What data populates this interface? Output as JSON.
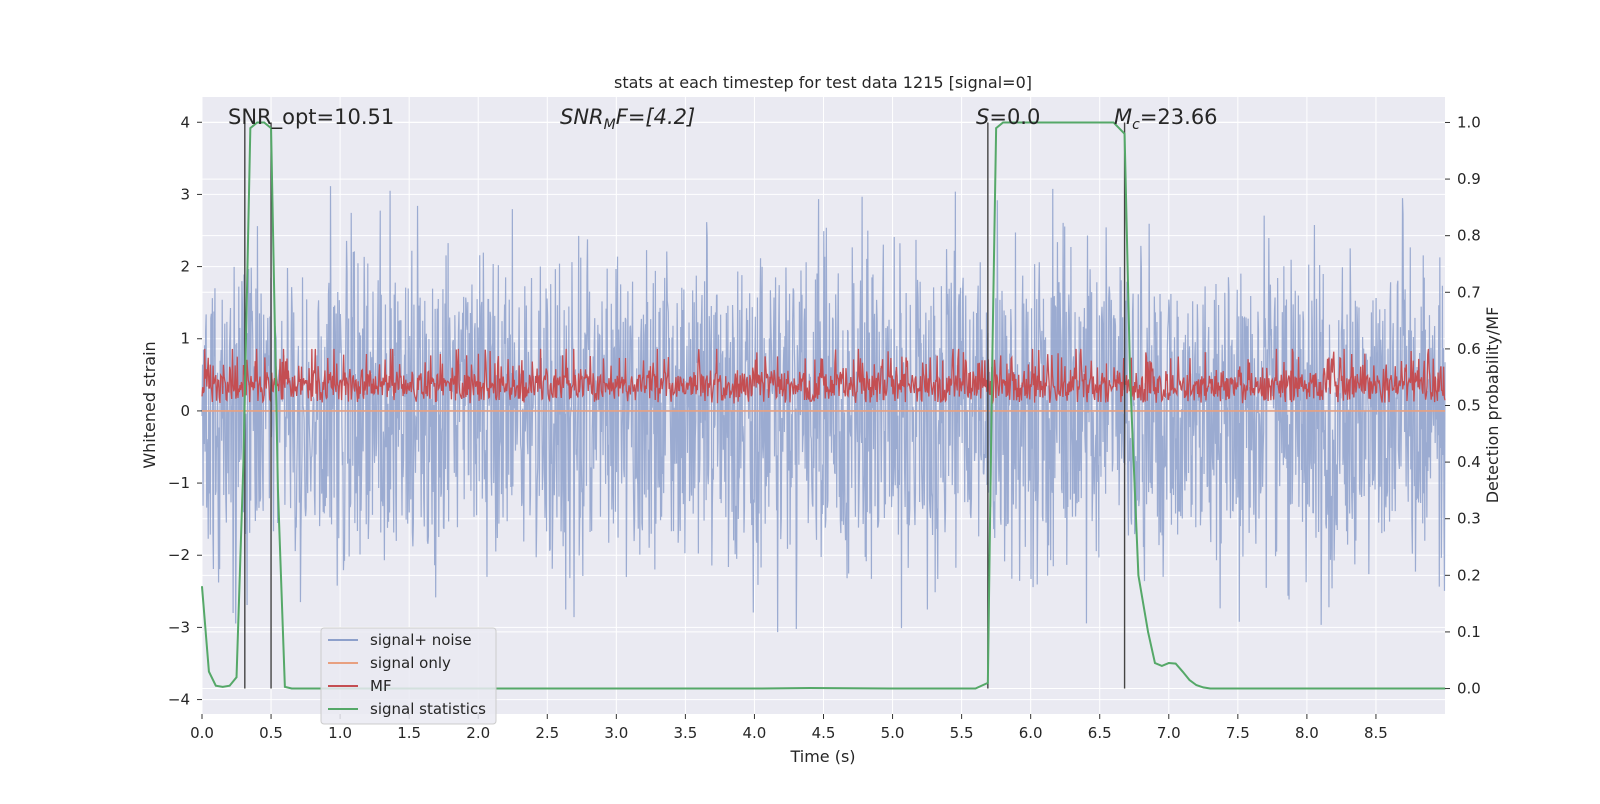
{
  "chart_data": {
    "type": "line",
    "title": "stats at each timestep for test data 1215 [signal=0]",
    "xlabel": "Time (s)",
    "ylabel_left": "Whitened strain",
    "ylabel_right": "Detection probability/MF",
    "xlim": [
      0.0,
      9.0
    ],
    "ylim_left": [
      -4.2,
      4.35
    ],
    "ylim_right": [
      -0.045,
      1.045
    ],
    "x_ticks": [
      "0.0",
      "0.5",
      "1.0",
      "1.5",
      "2.0",
      "2.5",
      "3.0",
      "3.5",
      "4.0",
      "4.5",
      "5.0",
      "5.5",
      "6.0",
      "6.5",
      "7.0",
      "7.5",
      "8.0",
      "8.5"
    ],
    "y_ticks_left": [
      "4",
      "3",
      "2",
      "1",
      "0",
      "−1",
      "−2",
      "−3",
      "−4"
    ],
    "y_ticks_right": [
      "1.0",
      "0.9",
      "0.8",
      "0.7",
      "0.6",
      "0.5",
      "0.4",
      "0.3",
      "0.2",
      "0.1",
      "0.0"
    ],
    "grid": true,
    "legend_position": "lower-left",
    "colors": {
      "background": "#eaeaf2",
      "grid": "#ffffff",
      "noise": "#8da0cb",
      "signal_only": "#e8a080",
      "mf": "#c44e52",
      "stat": "#55a868",
      "vline": "#444444"
    },
    "annotations": {
      "snr_opt": "SNR_opt=10.51",
      "snr_mf_main": "SNR",
      "snr_mf_sub": "M",
      "snr_mf_rest": "F=[4.2]",
      "s_main": "S",
      "s_rest": "=0.0",
      "mc_main": "M",
      "mc_sub": "c",
      "mc_rest": "=23.66"
    },
    "vertical_lines_x": [
      0.31,
      0.5,
      5.69,
      6.68
    ],
    "series": [
      {
        "name": "signal+ noise",
        "axis": "left",
        "envelope_amplitude": [
          1.6,
          3.2
        ]
      },
      {
        "name": "signal only",
        "axis": "left",
        "value": 0.0
      },
      {
        "name": "MF",
        "axis": "right",
        "range": [
          0.49,
          0.6
        ]
      },
      {
        "name": "signal statistics",
        "axis": "right",
        "x": [
          0.0,
          0.05,
          0.1,
          0.15,
          0.2,
          0.25,
          0.3,
          0.35,
          0.4,
          0.45,
          0.5,
          0.55,
          0.6,
          0.65,
          1.0,
          2.0,
          3.0,
          4.0,
          4.4,
          5.0,
          5.6,
          5.69,
          5.72,
          5.75,
          5.8,
          6.0,
          6.5,
          6.6,
          6.68,
          6.72,
          6.78,
          6.85,
          6.9,
          6.95,
          7.0,
          7.05,
          7.1,
          7.15,
          7.2,
          7.25,
          7.3,
          7.4,
          7.5,
          8.0,
          8.5,
          9.0
        ],
        "y": [
          0.18,
          0.03,
          0.005,
          0.003,
          0.005,
          0.02,
          0.4,
          0.99,
          1.0,
          1.0,
          0.99,
          0.35,
          0.003,
          0.0,
          0.0,
          0.0,
          0.0,
          0.0,
          0.001,
          0.0,
          0.0,
          0.01,
          0.55,
          0.99,
          1.0,
          1.0,
          1.0,
          1.0,
          0.98,
          0.55,
          0.2,
          0.1,
          0.045,
          0.04,
          0.045,
          0.044,
          0.03,
          0.015,
          0.006,
          0.002,
          0.0,
          0.0,
          0.0,
          0.0,
          0.0,
          0.0
        ]
      }
    ],
    "legend": [
      "signal+ noise",
      "signal only",
      "MF",
      "signal statistics"
    ]
  }
}
